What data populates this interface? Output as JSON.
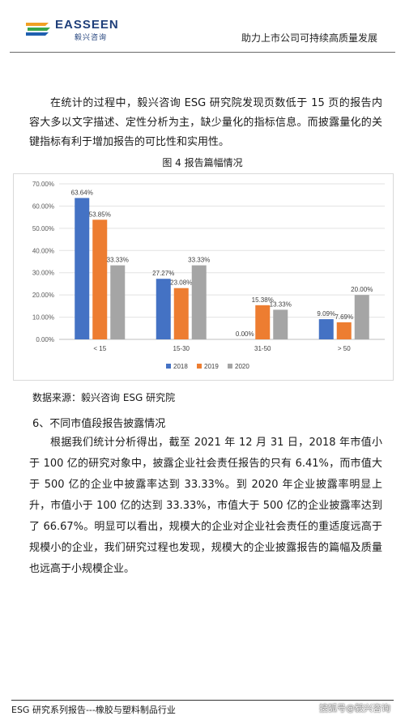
{
  "header": {
    "logo_text": "EASSEEN",
    "logo_subtext": "毅兴咨询",
    "tagline": "助力上市公司可持续高质量发展"
  },
  "paragraph1": "在统计的过程中，毅兴咨询 ESG 研究院发现页数低于 15 页的报告内容大多以文字描述、定性分析为主，缺少量化的指标信息。而披露量化的关键指标有利于增加报告的可比性和实用性。",
  "figure_caption": "图 4 报告篇幅情况",
  "chart_data": {
    "type": "bar",
    "categories": [
      "< 15",
      "15-30",
      "31-50",
      "> 50"
    ],
    "series": [
      {
        "name": "2018",
        "values": [
          63.64,
          27.27,
          0.0,
          9.09
        ],
        "labels": [
          "63.64%",
          "27.27%",
          "0.00%",
          "9.09%"
        ],
        "color": "#4472c4"
      },
      {
        "name": "2019",
        "values": [
          53.85,
          23.08,
          15.38,
          7.69
        ],
        "labels": [
          "53.85%",
          "23.08%",
          "15.38%",
          "7.69%"
        ],
        "color": "#ed7d31"
      },
      {
        "name": "2020",
        "values": [
          33.33,
          33.33,
          13.33,
          20.0
        ],
        "labels": [
          "33.33%",
          "33.33%",
          "13.33%",
          "20.00%"
        ],
        "color": "#a5a5a5"
      }
    ],
    "y_ticks": [
      "0.00%",
      "10.00%",
      "20.00%",
      "30.00%",
      "40.00%",
      "50.00%",
      "60.00%",
      "70.00%"
    ],
    "ylim": [
      0,
      70
    ],
    "grid": true,
    "legend_position": "bottom"
  },
  "source_note": "数据来源：毅兴咨询 ESG 研究院",
  "section_heading": "6、不同市值段报告披露情况",
  "paragraph2": "根据我们统计分析得出，截至 2021 年 12 月 31 日，2018 年市值小于 100 亿的研究对象中，披露企业社会责任报告的只有 6.41%，而市值大于 500 亿的企业中披露率达到 33.33%。到 2020 年企业披露率明显上升，市值小于 100 亿的达到 33.33%，市值大于 500 亿的企业披露率达到了 66.67%。明显可以看出，规模大的企业对企业社会责任的重适度远高于规模小的企业，我们研究过程也发现，规模大的企业披露报告的篇幅及质量也远高于小规模企业。",
  "footer": {
    "left": "ESG 研究系列报告---橡胶与塑料制品行业",
    "right": "搜狐号@毅兴咨询"
  }
}
